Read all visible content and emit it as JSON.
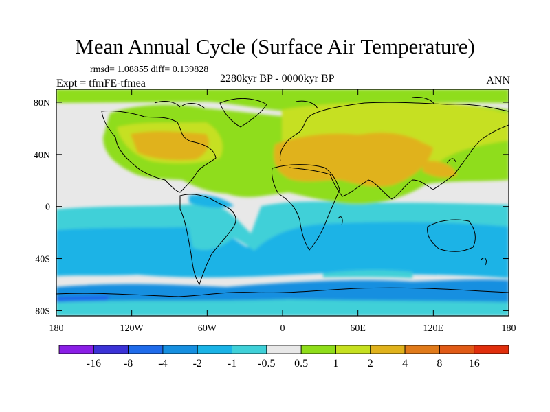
{
  "title": "Mean Annual Cycle (Surface Air Temperature)",
  "stats": "rmsd= 1.08855 diff= 0.139828",
  "experiment": "Expt = tfmFE-tfmea",
  "period": "2280kyr BP - 0000kyr BP",
  "season": "ANN",
  "lat_labels": [
    "80N",
    "40N",
    "0",
    "40S",
    "80S"
  ],
  "lon_labels": [
    "180",
    "120W",
    "60W",
    "0",
    "60E",
    "120E",
    "180"
  ],
  "colorbar": {
    "labels": [
      "-16",
      "-8",
      "-4",
      "-2",
      "-1",
      "-0.5",
      "0.5",
      "1",
      "2",
      "4",
      "8",
      "16"
    ],
    "colors": [
      "#8a1ee6",
      "#3b32d6",
      "#1f6bea",
      "#168fe0",
      "#1ab3e6",
      "#3fd0d8",
      "#e8e8e8",
      "#8fdd1a",
      "#c6e020",
      "#e0b21c",
      "#e07a1a",
      "#e05a16",
      "#e02e0c"
    ]
  },
  "palette": {
    "neutral": "#e8e8e8",
    "coast": "#000000"
  }
}
